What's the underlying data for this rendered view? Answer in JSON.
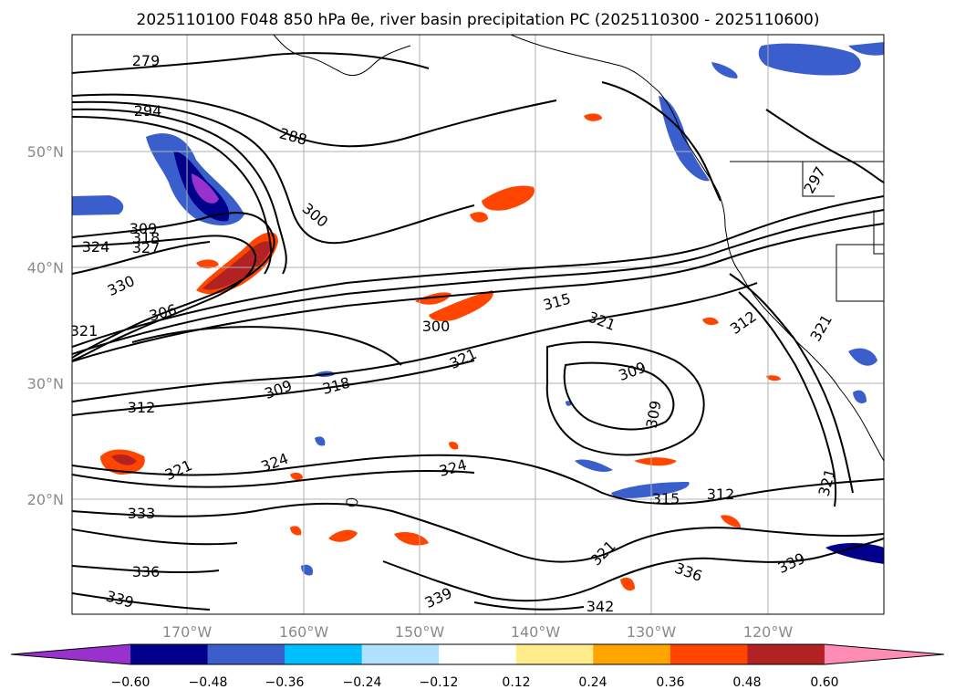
{
  "title": "2025110100 F048 850 hPa θe, river basin precipitation PC (2025110300 - 2025110600)",
  "map": {
    "lat_labels": [
      "50°N",
      "40°N",
      "30°N",
      "20°N"
    ],
    "lon_labels": [
      "170°W",
      "160°W",
      "150°W",
      "140°W",
      "130°W",
      "120°W"
    ],
    "contour_labels": [
      "279",
      "294",
      "288",
      "300",
      "309",
      "318",
      "324",
      "327",
      "330",
      "306",
      "321",
      "300",
      "315",
      "321",
      "312",
      "309",
      "318",
      "321",
      "309",
      "324",
      "324",
      "321",
      "315",
      "312",
      "333",
      "336",
      "339",
      "339",
      "342",
      "336",
      "339",
      "321",
      "297",
      "312",
      "321",
      "321",
      "309"
    ],
    "contour_color": "#000000",
    "coast_color": "#000000",
    "grid_color": "#b0b0b0"
  },
  "colorbar": {
    "ticks": [
      "−0.60",
      "−0.48",
      "−0.36",
      "−0.24",
      "−0.12",
      "0.12",
      "0.24",
      "0.36",
      "0.48",
      "0.60"
    ],
    "colors": [
      "#9932cc",
      "#00008b",
      "#3a5fcd",
      "#00bfff",
      "#b0e2ff",
      "#ffffff",
      "#ffec8b",
      "#ffa500",
      "#ff4500",
      "#b22222",
      "#ff8cb4"
    ],
    "under_color": "#9932cc",
    "over_color": "#ff8cb4"
  }
}
